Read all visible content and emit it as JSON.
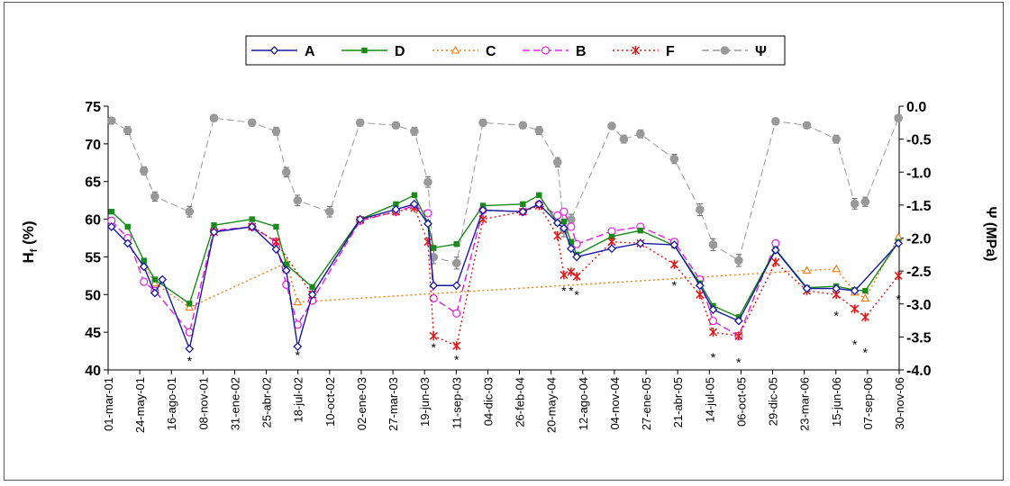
{
  "chart_data": {
    "type": "line",
    "ylabel_main": "H",
    "ylabel_sub": "f",
    "ylabel_rest": " (%)",
    "y2label": "Ψ (MPa)",
    "ylim": [
      40,
      75
    ],
    "y_ticks": [
      40,
      45,
      50,
      55,
      60,
      65,
      70,
      75
    ],
    "y2lim": [
      -4.0,
      0.0
    ],
    "y2_ticks": [
      "-4.0",
      "-3.5",
      "-3.0",
      "-2.5",
      "-2.0",
      "-1.5",
      "-1.0",
      "-0.5",
      "0.0"
    ],
    "x_start": "2001-03-01",
    "x_end": "2006-11-30",
    "x_tick_dates": [
      "2001-03-01",
      "2001-05-24",
      "2001-08-16",
      "2001-11-08",
      "2002-01-31",
      "2002-04-25",
      "2002-07-18",
      "2002-10-10",
      "2003-01-02",
      "2003-03-27",
      "2003-06-19",
      "2003-09-11",
      "2003-12-04",
      "2004-02-26",
      "2004-05-20",
      "2004-08-12",
      "2004-11-04",
      "2005-01-27",
      "2005-04-21",
      "2005-07-14",
      "2005-10-06",
      "2005-12-29",
      "2006-03-23",
      "2006-06-15",
      "2006-09-07",
      "2006-11-30"
    ],
    "x_tick_labels": [
      "01-mar-01",
      "24-may-01",
      "16-ago-01",
      "08-nov-01",
      "31-ene-02",
      "25-abr-02",
      "18-jul-02",
      "10-oct-02",
      "02-ene-03",
      "27-mar-03",
      "19-jun-03",
      "11-sep-03",
      "04-dic-03",
      "26-feb-04",
      "20-may-04",
      "12-ago-04",
      "04-nov-04",
      "27-ene-05",
      "21-abr-05",
      "14-jul-05",
      "06-oct-05",
      "29-dic-05",
      "23-mar-06",
      "15-jun-06",
      "07-sep-06",
      "30-nov-06"
    ],
    "grid": false,
    "legend_position": "top",
    "legend": [
      {
        "name": "A",
        "color": "#1a1aa0",
        "marker": "diamond",
        "dash": "solid"
      },
      {
        "name": "D",
        "color": "#1a8a1a",
        "marker": "square",
        "dash": "solid"
      },
      {
        "name": "C",
        "color": "#f07a10",
        "marker": "triangle",
        "dash": "dotted"
      },
      {
        "name": "B",
        "color": "#e020e0",
        "marker": "circle",
        "dash": "dashed"
      },
      {
        "name": "F",
        "color": "#e01515",
        "marker": "star",
        "dash": "dotted"
      },
      {
        "name": "Ψ",
        "color": "#999999",
        "marker": "dot",
        "dash": "dashed"
      }
    ],
    "series": [
      {
        "name": "A",
        "axis": "left",
        "x": [
          "2001-03-10",
          "2001-04-22",
          "2001-06-04",
          "2001-07-03",
          "2001-07-23",
          "2001-10-03",
          "2001-12-07",
          "2002-03-18",
          "2002-05-21",
          "2002-06-17",
          "2002-07-17",
          "2002-08-25",
          "2002-12-30",
          "2003-04-04",
          "2003-05-23",
          "2003-06-28",
          "2003-07-13",
          "2003-09-12",
          "2003-11-21",
          "2004-03-06",
          "2004-04-18",
          "2004-06-06",
          "2004-06-23",
          "2004-07-12",
          "2004-07-27",
          "2004-10-28",
          "2005-01-12",
          "2005-04-12",
          "2005-06-19",
          "2005-07-24",
          "2005-09-30",
          "2006-01-06",
          "2006-03-30",
          "2006-06-16",
          "2006-08-04",
          "2006-11-28"
        ],
        "y": [
          59.0,
          56.8,
          53.7,
          50.2,
          52.0,
          42.8,
          58.3,
          59.0,
          56.0,
          53.2,
          43.1,
          50.0,
          60.0,
          61.3,
          62.0,
          59.4,
          51.2,
          51.2,
          61.2,
          61.0,
          62.0,
          59.5,
          58.8,
          56.1,
          55.0,
          56.1,
          56.8,
          56.6,
          51.2,
          48.0,
          46.5,
          55.9,
          50.8,
          50.8,
          50.5,
          56.8
        ]
      },
      {
        "name": "D",
        "axis": "left",
        "x": [
          "2001-03-10",
          "2001-04-22",
          "2001-06-04",
          "2001-07-03",
          "2001-10-03",
          "2001-12-07",
          "2002-03-18",
          "2002-05-21",
          "2002-06-17",
          "2002-08-25",
          "2002-12-30",
          "2003-04-04",
          "2003-05-23",
          "2003-06-28",
          "2003-07-13",
          "2003-09-12",
          "2003-11-21",
          "2004-03-06",
          "2004-04-18",
          "2004-06-06",
          "2004-06-23",
          "2004-07-12",
          "2004-07-27",
          "2004-10-28",
          "2005-01-12",
          "2005-04-12",
          "2005-06-19",
          "2005-07-24",
          "2005-09-30",
          "2006-01-06",
          "2006-03-30",
          "2006-06-16",
          "2006-08-04",
          "2006-09-01",
          "2006-11-28"
        ],
        "y": [
          61.0,
          59.0,
          54.5,
          52.0,
          48.8,
          59.2,
          60.0,
          59.0,
          54.0,
          51.0,
          60.0,
          62.0,
          63.2,
          59.5,
          56.2,
          56.7,
          61.8,
          62.0,
          63.2,
          59.5,
          59.7,
          57.0,
          55.3,
          57.7,
          58.5,
          56.5,
          51.5,
          48.5,
          47.0,
          56.0,
          50.9,
          51.1,
          50.6,
          50.5,
          57.0
        ]
      },
      {
        "name": "C",
        "axis": "left",
        "x": [
          "2001-06-04",
          "2001-07-03",
          "2001-10-03",
          "2002-06-17",
          "2002-07-17",
          "2006-03-30",
          "2006-06-16",
          "2006-08-04",
          "2006-09-01",
          "2006-11-28"
        ],
        "y": [
          54.0,
          51.5,
          48.3,
          54.2,
          49.0,
          53.2,
          53.4,
          50.3,
          49.5,
          57.6
        ]
      },
      {
        "name": "B",
        "axis": "left",
        "x": [
          "2001-03-10",
          "2001-04-22",
          "2001-06-04",
          "2001-07-03",
          "2001-10-03",
          "2001-12-07",
          "2002-03-18",
          "2002-05-21",
          "2002-06-17",
          "2002-07-17",
          "2002-08-25",
          "2002-12-30",
          "2003-04-04",
          "2003-05-23",
          "2003-06-28",
          "2003-07-13",
          "2003-09-12",
          "2003-11-21",
          "2004-03-06",
          "2004-04-18",
          "2004-06-06",
          "2004-06-23",
          "2004-07-12",
          "2004-07-27",
          "2004-10-28",
          "2005-01-12",
          "2005-04-12",
          "2005-06-19",
          "2005-07-24",
          "2005-09-30",
          "2006-01-06"
        ],
        "y": [
          59.8,
          57.5,
          51.7,
          50.5,
          45.0,
          58.5,
          59.0,
          57.0,
          51.3,
          46.0,
          49.2,
          59.8,
          61.0,
          61.8,
          60.8,
          49.5,
          47.5,
          61.2,
          61.0,
          62.0,
          60.5,
          61.0,
          59.0,
          56.7,
          58.4,
          59.0,
          57.0,
          52.0,
          46.5,
          44.5,
          56.8
        ]
      },
      {
        "name": "F",
        "axis": "left",
        "x": [
          "2001-12-07",
          "2002-03-18",
          "2002-05-21",
          "2002-08-25",
          "2002-12-30",
          "2003-04-04",
          "2003-05-23",
          "2003-06-28",
          "2003-07-13",
          "2003-09-12",
          "2003-11-21",
          "2004-03-06",
          "2004-04-18",
          "2004-06-06",
          "2004-06-23",
          "2004-07-12",
          "2004-07-27",
          "2004-10-28",
          "2005-01-12",
          "2005-04-12",
          "2005-06-19",
          "2005-07-24",
          "2005-09-30",
          "2006-01-06",
          "2006-03-30",
          "2006-06-16",
          "2006-08-04",
          "2006-09-01",
          "2006-11-28"
        ],
        "y": [
          58.3,
          59.0,
          57.0,
          50.0,
          59.9,
          61.0,
          61.5,
          57.0,
          44.5,
          43.2,
          60.0,
          61.0,
          61.8,
          57.8,
          52.6,
          53.0,
          52.4,
          57.0,
          56.8,
          54.0,
          50.0,
          45.0,
          44.5,
          54.3,
          50.5,
          50.0,
          48.1,
          47.0,
          52.5
        ]
      },
      {
        "name": "Ψ",
        "axis": "right",
        "x": [
          "2001-03-10",
          "2001-04-22",
          "2001-06-04",
          "2001-07-03",
          "2001-10-03",
          "2001-12-07",
          "2002-03-18",
          "2002-05-21",
          "2002-06-17",
          "2002-07-17",
          "2002-10-10",
          "2002-12-30",
          "2003-04-04",
          "2003-05-23",
          "2003-06-28",
          "2003-07-13",
          "2003-09-12",
          "2003-11-21",
          "2004-03-06",
          "2004-04-18",
          "2004-06-06",
          "2004-06-23",
          "2004-07-12",
          "2004-10-28",
          "2004-11-29",
          "2005-01-12",
          "2005-04-12",
          "2005-06-19",
          "2005-07-24",
          "2005-09-30",
          "2006-01-06",
          "2006-03-30",
          "2006-06-16",
          "2006-08-04",
          "2006-09-01",
          "2006-11-28"
        ],
        "y": [
          -0.22,
          -0.37,
          -0.98,
          -1.37,
          -1.6,
          -0.18,
          -0.25,
          -0.38,
          -1.0,
          -1.43,
          -1.6,
          -0.25,
          -0.29,
          -0.38,
          -1.15,
          -2.29,
          -2.38,
          -0.25,
          -0.29,
          -0.37,
          -0.85,
          -1.88,
          -1.72,
          -0.3,
          -0.5,
          -0.42,
          -0.8,
          -1.57,
          -2.1,
          -2.34,
          -0.23,
          -0.29,
          -0.5,
          -1.48,
          -1.45,
          -0.18
        ],
        "err": [
          0.05,
          0.06,
          0.06,
          0.07,
          0.08,
          0.05,
          0.05,
          0.06,
          0.07,
          0.08,
          0.08,
          0.05,
          0.05,
          0.06,
          0.08,
          0.1,
          0.09,
          0.05,
          0.05,
          0.06,
          0.07,
          0.1,
          0.08,
          0.05,
          0.06,
          0.06,
          0.07,
          0.09,
          0.09,
          0.09,
          0.05,
          0.05,
          0.06,
          0.08,
          0.07,
          0.05
        ]
      }
    ],
    "annotations": [
      {
        "x": "2001-10-03",
        "y": 41.2,
        "text": "*"
      },
      {
        "x": "2002-07-17",
        "y": 42.0,
        "text": "*"
      },
      {
        "x": "2003-07-13",
        "y": 43.0,
        "text": "*"
      },
      {
        "x": "2003-09-12",
        "y": 41.4,
        "text": "*"
      },
      {
        "x": "2004-06-23",
        "y": 50.5,
        "text": "*"
      },
      {
        "x": "2004-07-12",
        "y": 50.5,
        "text": "*"
      },
      {
        "x": "2004-07-27",
        "y": 50.0,
        "text": "*"
      },
      {
        "x": "2005-04-12",
        "y": 51.2,
        "text": "*"
      },
      {
        "x": "2005-07-24",
        "y": 41.7,
        "text": "*"
      },
      {
        "x": "2005-09-30",
        "y": 41.0,
        "text": "*"
      },
      {
        "x": "2006-06-16",
        "y": 47.2,
        "text": "*"
      },
      {
        "x": "2006-08-04",
        "y": 43.4,
        "text": "*"
      },
      {
        "x": "2006-09-01",
        "y": 42.3,
        "text": "*"
      },
      {
        "x": "2006-11-28",
        "y": 49.4,
        "text": "*"
      }
    ]
  }
}
